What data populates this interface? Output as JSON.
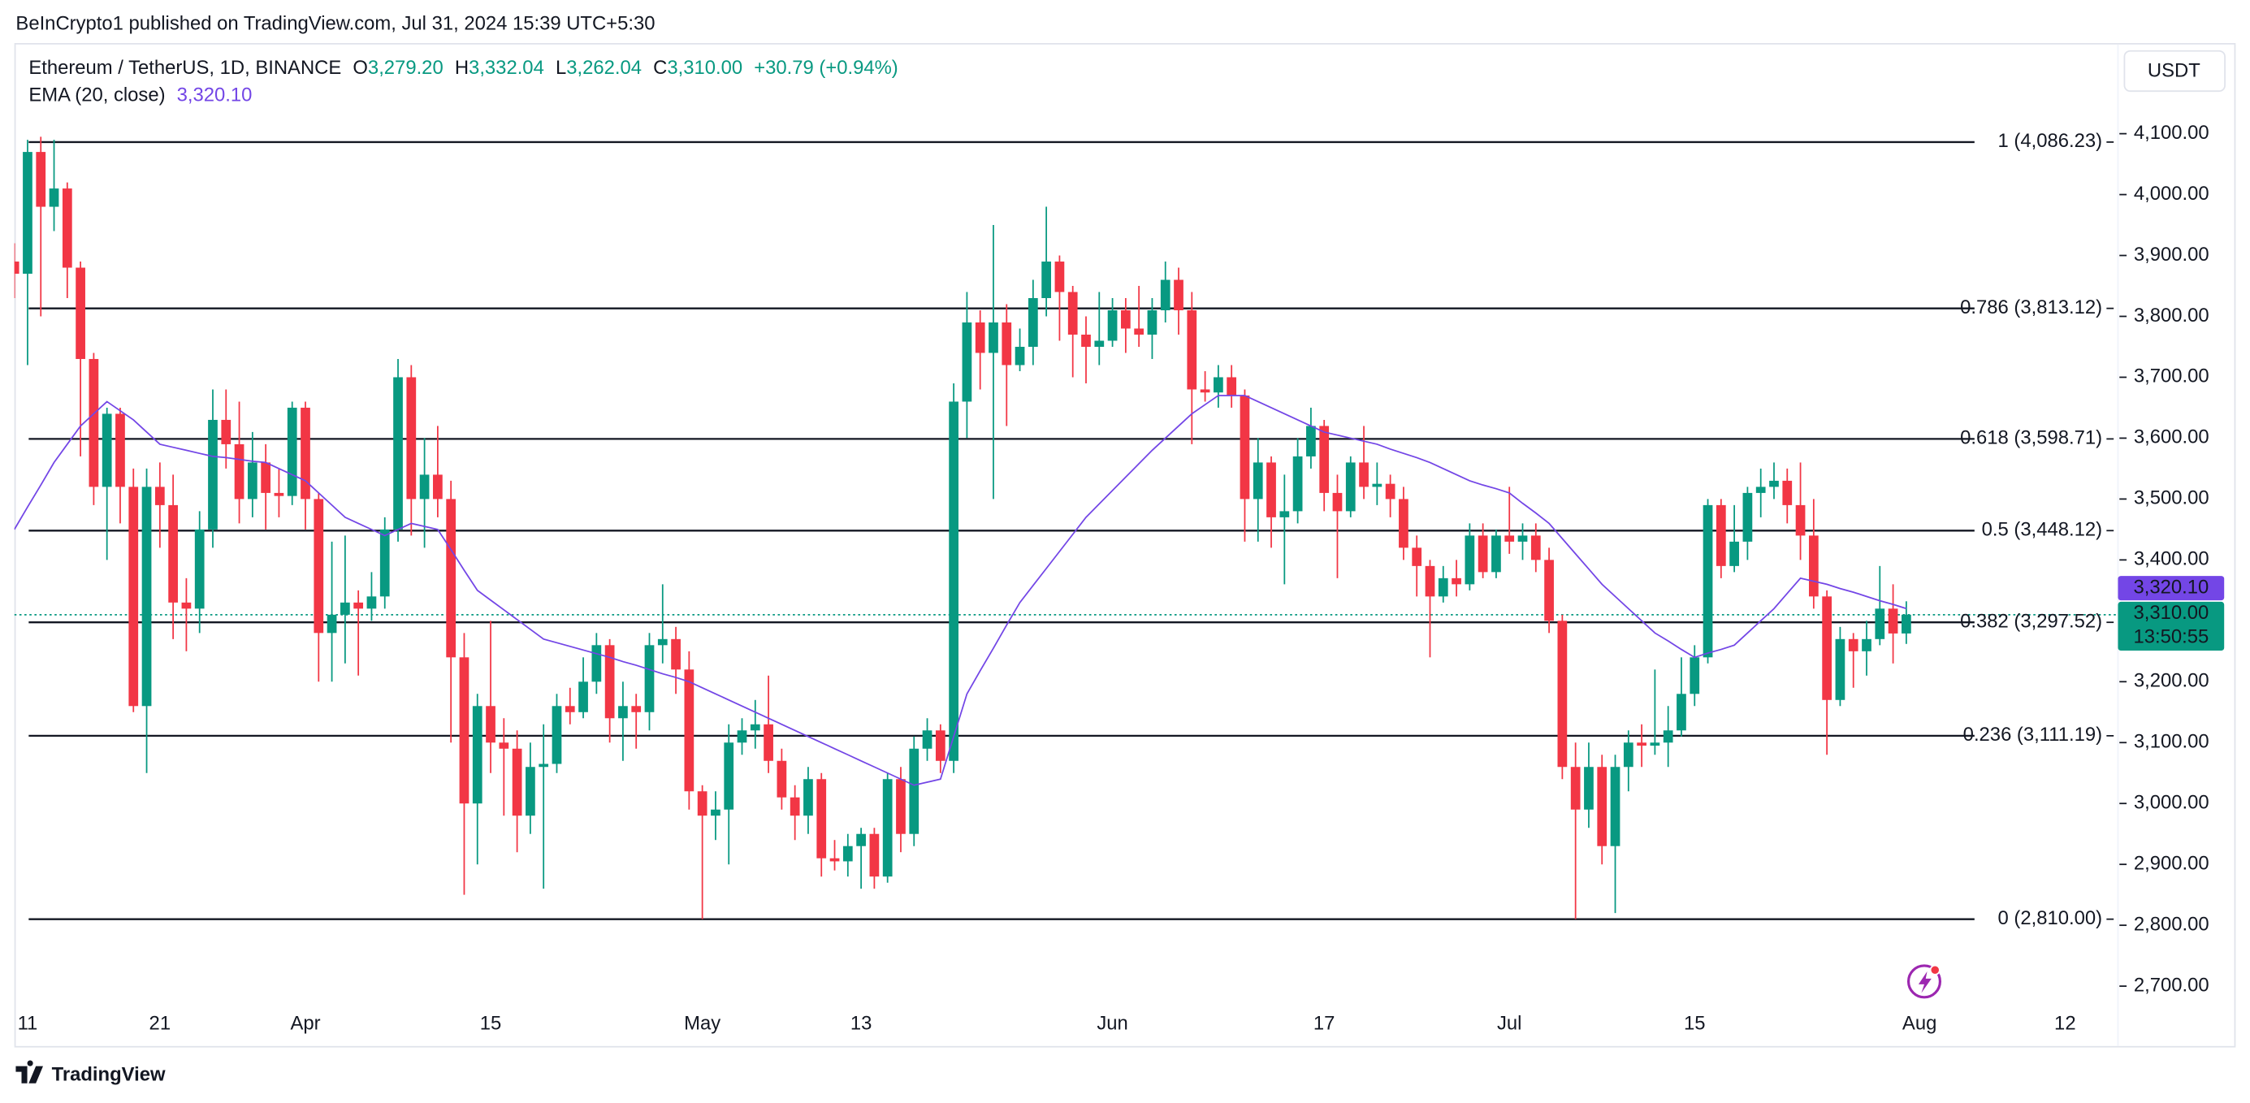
{
  "header": "BeInCrypto1 published on TradingView.com, Jul 31, 2024 15:39 UTC+5:30",
  "footer_brand": "TradingView",
  "currency": "USDT",
  "chart_data": {
    "type": "candlestick",
    "symbol": "Ethereum / TetherUS, 1D, BINANCE",
    "ohlc": [
      {
        "key": "O",
        "value": "3,279.20"
      },
      {
        "key": "H",
        "value": "3,332.04"
      },
      {
        "key": "L",
        "value": "3,262.04"
      },
      {
        "key": "C",
        "value": "3,310.00"
      }
    ],
    "change": "+30.79 (+0.94%)",
    "countdown": "13:50:55",
    "up_color": "#089981",
    "down_color": "#f23645",
    "grid": false,
    "x": [
      "2024-03-10",
      "2024-03-11",
      "2024-03-12",
      "2024-03-13",
      "2024-03-14",
      "2024-03-15",
      "2024-03-16",
      "2024-03-17",
      "2024-03-18",
      "2024-03-19",
      "2024-03-20",
      "2024-03-21",
      "2024-03-22",
      "2024-03-23",
      "2024-03-24",
      "2024-03-25",
      "2024-03-26",
      "2024-03-27",
      "2024-03-28",
      "2024-03-29",
      "2024-03-30",
      "2024-03-31",
      "2024-04-01",
      "2024-04-02",
      "2024-04-03",
      "2024-04-04",
      "2024-04-05",
      "2024-04-06",
      "2024-04-07",
      "2024-04-08",
      "2024-04-09",
      "2024-04-10",
      "2024-04-11",
      "2024-04-12",
      "2024-04-13",
      "2024-04-14",
      "2024-04-15",
      "2024-04-16",
      "2024-04-17",
      "2024-04-18",
      "2024-04-19",
      "2024-04-20",
      "2024-04-21",
      "2024-04-22",
      "2024-04-23",
      "2024-04-24",
      "2024-04-25",
      "2024-04-26",
      "2024-04-27",
      "2024-04-28",
      "2024-04-29",
      "2024-04-30",
      "2024-05-01",
      "2024-05-02",
      "2024-05-03",
      "2024-05-04",
      "2024-05-05",
      "2024-05-06",
      "2024-05-07",
      "2024-05-08",
      "2024-05-09",
      "2024-05-10",
      "2024-05-11",
      "2024-05-12",
      "2024-05-13",
      "2024-05-14",
      "2024-05-15",
      "2024-05-16",
      "2024-05-17",
      "2024-05-18",
      "2024-05-19",
      "2024-05-20",
      "2024-05-21",
      "2024-05-22",
      "2024-05-23",
      "2024-05-24",
      "2024-05-25",
      "2024-05-26",
      "2024-05-27",
      "2024-05-28",
      "2024-05-29",
      "2024-05-30",
      "2024-05-31",
      "2024-06-01",
      "2024-06-02",
      "2024-06-03",
      "2024-06-04",
      "2024-06-05",
      "2024-06-06",
      "2024-06-07",
      "2024-06-08",
      "2024-06-09",
      "2024-06-10",
      "2024-06-11",
      "2024-06-12",
      "2024-06-13",
      "2024-06-14",
      "2024-06-15",
      "2024-06-16",
      "2024-06-17",
      "2024-06-18",
      "2024-06-19",
      "2024-06-20",
      "2024-06-21",
      "2024-06-22",
      "2024-06-23",
      "2024-06-24",
      "2024-06-25",
      "2024-06-26",
      "2024-06-27",
      "2024-06-28",
      "2024-06-29",
      "2024-06-30",
      "2024-07-01",
      "2024-07-02",
      "2024-07-03",
      "2024-07-04",
      "2024-07-05",
      "2024-07-06",
      "2024-07-07",
      "2024-07-08",
      "2024-07-09",
      "2024-07-10",
      "2024-07-11",
      "2024-07-12",
      "2024-07-13",
      "2024-07-14",
      "2024-07-15",
      "2024-07-16",
      "2024-07-17",
      "2024-07-18",
      "2024-07-19",
      "2024-07-20",
      "2024-07-21",
      "2024-07-22",
      "2024-07-23",
      "2024-07-24",
      "2024-07-25",
      "2024-07-26",
      "2024-07-27",
      "2024-07-28",
      "2024-07-29",
      "2024-07-30",
      "2024-07-31"
    ],
    "open": [
      3890,
      3870,
      4070,
      3980,
      4010,
      3880,
      3730,
      3520,
      3640,
      3520,
      3160,
      3520,
      3490,
      3330,
      3320,
      3450,
      3630,
      3590,
      3500,
      3560,
      3510,
      3505,
      3650,
      3500,
      3280,
      3310,
      3330,
      3320,
      3340,
      3450,
      3700,
      3500,
      3540,
      3500,
      3240,
      3000,
      3160,
      3100,
      3090,
      2980,
      3060,
      3065,
      3160,
      3150,
      3200,
      3260,
      3140,
      3160,
      3150,
      3260,
      3270,
      3220,
      3020,
      2980,
      2990,
      3100,
      3120,
      3130,
      3070,
      3010,
      2980,
      3040,
      2910,
      2905,
      2930,
      2950,
      2880,
      3040,
      2950,
      3090,
      3120,
      3070,
      3660,
      3790,
      3740,
      3790,
      3720,
      3750,
      3830,
      3890,
      3840,
      3770,
      3750,
      3760,
      3810,
      3780,
      3770,
      3810,
      3860,
      3810,
      3680,
      3675,
      3700,
      3670,
      3500,
      3560,
      3470,
      3480,
      3570,
      3620,
      3510,
      3480,
      3560,
      3520,
      3525,
      3500,
      3420,
      3390,
      3340,
      3370,
      3360,
      3440,
      3380,
      3440,
      3430,
      3440,
      3400,
      3300,
      3060,
      2990,
      3060,
      2930,
      3060,
      3100,
      3095,
      3100,
      3120,
      3180,
      3240,
      3490,
      3390,
      3430,
      3510,
      3520,
      3530,
      3490,
      3440,
      3340,
      3170,
      3270,
      3250,
      3270,
      3320,
      3279.2
    ],
    "high": [
      3920,
      4090,
      4095,
      4090,
      4020,
      3890,
      3740,
      3650,
      3650,
      3550,
      3550,
      3560,
      3540,
      3370,
      3480,
      3680,
      3680,
      3660,
      3610,
      3590,
      3550,
      3660,
      3660,
      3510,
      3430,
      3440,
      3350,
      3380,
      3470,
      3730,
      3720,
      3600,
      3620,
      3530,
      3280,
      3180,
      3300,
      3140,
      3120,
      3100,
      3130,
      3180,
      3190,
      3240,
      3280,
      3270,
      3200,
      3180,
      3280,
      3360,
      3290,
      3250,
      3030,
      3020,
      3130,
      3140,
      3170,
      3210,
      3090,
      3030,
      3060,
      3050,
      2940,
      2950,
      2960,
      2960,
      3050,
      3060,
      3110,
      3140,
      3130,
      3690,
      3840,
      3810,
      3950,
      3820,
      3780,
      3860,
      3980,
      3900,
      3850,
      3800,
      3840,
      3830,
      3830,
      3850,
      3830,
      3890,
      3880,
      3840,
      3710,
      3720,
      3720,
      3680,
      3600,
      3570,
      3540,
      3600,
      3650,
      3630,
      3540,
      3570,
      3620,
      3560,
      3540,
      3520,
      3440,
      3400,
      3390,
      3400,
      3460,
      3460,
      3450,
      3520,
      3460,
      3460,
      3420,
      3310,
      3100,
      3100,
      3080,
      3080,
      3120,
      3130,
      3220,
      3160,
      3240,
      3260,
      3500,
      3500,
      3490,
      3520,
      3550,
      3560,
      3550,
      3560,
      3500,
      3350,
      3290,
      3280,
      3300,
      3390,
      3360,
      3332.04
    ],
    "low": [
      3830,
      3720,
      3800,
      3940,
      3830,
      3570,
      3490,
      3400,
      3460,
      3150,
      3050,
      3420,
      3270,
      3250,
      3280,
      3420,
      3550,
      3460,
      3470,
      3450,
      3470,
      3490,
      3450,
      3200,
      3200,
      3230,
      3210,
      3300,
      3320,
      3430,
      3440,
      3420,
      3470,
      3100,
      2850,
      2900,
      3050,
      2980,
      2920,
      2950,
      2860,
      3050,
      3130,
      3140,
      3180,
      3100,
      3070,
      3090,
      3120,
      3230,
      3180,
      2990,
      2810,
      2940,
      2900,
      3080,
      3090,
      3050,
      2990,
      2940,
      2950,
      2880,
      2890,
      2880,
      2860,
      2860,
      2870,
      2920,
      2930,
      3070,
      3050,
      3050,
      3600,
      3680,
      3500,
      3620,
      3710,
      3720,
      3800,
      3760,
      3700,
      3690,
      3720,
      3750,
      3740,
      3750,
      3730,
      3790,
      3770,
      3590,
      3660,
      3650,
      3650,
      3430,
      3430,
      3420,
      3360,
      3460,
      3550,
      3480,
      3370,
      3470,
      3500,
      3490,
      3470,
      3400,
      3340,
      3240,
      3330,
      3340,
      3350,
      3370,
      3370,
      3410,
      3400,
      3380,
      3280,
      3040,
      2810,
      2960,
      2900,
      2820,
      3020,
      3060,
      3080,
      3060,
      3110,
      3160,
      3230,
      3370,
      3380,
      3400,
      3470,
      3500,
      3460,
      3400,
      3320,
      3080,
      3160,
      3190,
      3210,
      3260,
      3230,
      3262.04
    ],
    "close": [
      3870,
      4070,
      3980,
      4010,
      3880,
      3730,
      3520,
      3640,
      3520,
      3160,
      3520,
      3490,
      3330,
      3320,
      3450,
      3630,
      3590,
      3500,
      3560,
      3510,
      3505,
      3650,
      3500,
      3280,
      3310,
      3330,
      3320,
      3340,
      3450,
      3700,
      3500,
      3540,
      3500,
      3240,
      3000,
      3160,
      3100,
      3090,
      2980,
      3060,
      3065,
      3160,
      3150,
      3200,
      3260,
      3140,
      3160,
      3150,
      3260,
      3270,
      3220,
      3020,
      2980,
      2990,
      3100,
      3120,
      3130,
      3070,
      3010,
      2980,
      3040,
      2910,
      2905,
      2930,
      2950,
      2880,
      3040,
      2950,
      3090,
      3120,
      3070,
      3660,
      3790,
      3740,
      3790,
      3720,
      3750,
      3830,
      3890,
      3840,
      3770,
      3750,
      3760,
      3810,
      3780,
      3770,
      3810,
      3860,
      3810,
      3680,
      3675,
      3700,
      3670,
      3500,
      3560,
      3470,
      3480,
      3570,
      3620,
      3510,
      3480,
      3560,
      3520,
      3525,
      3500,
      3420,
      3390,
      3340,
      3370,
      3360,
      3440,
      3380,
      3440,
      3430,
      3440,
      3400,
      3300,
      3060,
      2990,
      3060,
      2930,
      3060,
      3100,
      3095,
      3100,
      3120,
      3180,
      3240,
      3490,
      3390,
      3430,
      3510,
      3520,
      3530,
      3490,
      3440,
      3340,
      3170,
      3270,
      3250,
      3270,
      3320,
      3279.2,
      3310
    ],
    "ema": {
      "name": "EMA (20, close)",
      "color": "#7346e6",
      "last_label": "3,320.10",
      "values": [
        3450,
        3487,
        3523,
        3560,
        3590,
        3620,
        3640,
        3660,
        3645,
        3630,
        3610,
        3590,
        3585,
        3580,
        3575,
        3570,
        3568,
        3565,
        3562,
        3560,
        3550,
        3540,
        3530,
        3510,
        3490,
        3470,
        3460,
        3450,
        3440,
        3450,
        3460,
        3455,
        3450,
        3417,
        3383,
        3350,
        3334,
        3318,
        3302,
        3286,
        3270,
        3264,
        3258,
        3252,
        3246,
        3240,
        3233,
        3227,
        3220,
        3213,
        3207,
        3200,
        3190,
        3180,
        3170,
        3160,
        3150,
        3140,
        3130,
        3120,
        3110,
        3100,
        3090,
        3080,
        3070,
        3060,
        3050,
        3040,
        3030,
        3035,
        3040,
        3110,
        3180,
        3218,
        3255,
        3293,
        3330,
        3358,
        3386,
        3414,
        3442,
        3470,
        3492,
        3514,
        3536,
        3558,
        3580,
        3600,
        3620,
        3640,
        3655,
        3670,
        3670,
        3670,
        3660,
        3650,
        3640,
        3630,
        3620,
        3610,
        3605,
        3600,
        3595,
        3590,
        3582,
        3575,
        3568,
        3560,
        3550,
        3540,
        3530,
        3523,
        3517,
        3510,
        3493,
        3477,
        3460,
        3435,
        3410,
        3385,
        3360,
        3340,
        3320,
        3300,
        3280,
        3267,
        3253,
        3240,
        3247,
        3253,
        3260,
        3280,
        3300,
        3320,
        3345,
        3370,
        3365,
        3360,
        3353,
        3347,
        3340,
        3333,
        3327,
        3320.1
      ]
    },
    "levels": [
      {
        "value": 4086.23,
        "label": "1 (4,086.23)"
      },
      {
        "value": 3813.12,
        "label": "0.786 (3,813.12)"
      },
      {
        "value": 3598.71,
        "label": "0.618 (3,598.71)"
      },
      {
        "value": 3448.12,
        "label": "0.5 (3,448.12)"
      },
      {
        "value": 3297.52,
        "label": "0.382 (3,297.52)"
      },
      {
        "value": 3111.19,
        "label": "0.236 (3,111.19)"
      },
      {
        "value": 2810.0,
        "label": "0 (2,810.00)"
      }
    ],
    "xlim": [
      "2024-03-10",
      "2024-08-16"
    ],
    "xticks": [
      {
        "value": "2024-03-11",
        "label": "11"
      },
      {
        "value": "2024-03-21",
        "label": "21"
      },
      {
        "value": "2024-04-01",
        "label": "Apr"
      },
      {
        "value": "2024-04-15",
        "label": "15"
      },
      {
        "value": "2024-05-01",
        "label": "May"
      },
      {
        "value": "2024-05-13",
        "label": "13"
      },
      {
        "value": "2024-06-01",
        "label": "Jun"
      },
      {
        "value": "2024-06-17",
        "label": "17"
      },
      {
        "value": "2024-07-01",
        "label": "Jul"
      },
      {
        "value": "2024-07-15",
        "label": "15"
      },
      {
        "value": "2024-08-01",
        "label": "Aug"
      },
      {
        "value": "2024-08-12",
        "label": "12"
      }
    ],
    "ylim": [
      2670,
      4230
    ],
    "yticks": [
      {
        "value": 4100,
        "label": "4,100.00"
      },
      {
        "value": 4000,
        "label": "4,000.00"
      },
      {
        "value": 3900,
        "label": "3,900.00"
      },
      {
        "value": 3800,
        "label": "3,800.00"
      },
      {
        "value": 3700,
        "label": "3,700.00"
      },
      {
        "value": 3600,
        "label": "3,600.00"
      },
      {
        "value": 3500,
        "label": "3,500.00"
      },
      {
        "value": 3400,
        "label": "3,400.00"
      },
      {
        "value": 3300,
        "label": "3,300.00"
      },
      {
        "value": 3200,
        "label": "3,200.00"
      },
      {
        "value": 3100,
        "label": "3,100.00"
      },
      {
        "value": 3000,
        "label": "3,000.00"
      },
      {
        "value": 2900,
        "label": "2,900.00"
      },
      {
        "value": 2800,
        "label": "2,800.00"
      },
      {
        "value": 2700,
        "label": "2,700.00"
      }
    ]
  }
}
